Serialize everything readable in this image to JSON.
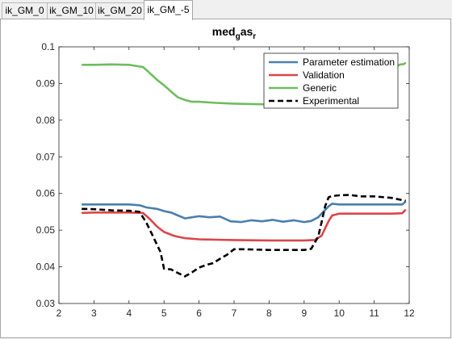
{
  "tabs": [
    {
      "label": "ik_GM_0",
      "active": false
    },
    {
      "label": "ik_GM_10",
      "active": false
    },
    {
      "label": "ik_GM_20",
      "active": false
    },
    {
      "label": "ik_GM_-5",
      "active": true
    }
  ],
  "chart_data": {
    "type": "line",
    "title": {
      "base": "med",
      "sub1": "g",
      "mid": "as",
      "sub2": "r"
    },
    "xlabel": "",
    "ylabel": "",
    "xlim": [
      2,
      12
    ],
    "ylim": [
      0.03,
      0.1
    ],
    "xticks": [
      "2",
      "3",
      "4",
      "5",
      "6",
      "7",
      "8",
      "9",
      "10",
      "11",
      "12"
    ],
    "yticks": [
      "0.03",
      "0.04",
      "0.05",
      "0.06",
      "0.07",
      "0.08",
      "0.09",
      "0.1"
    ],
    "grid": false,
    "legend_position": "top-right",
    "series": [
      {
        "name": "Parameter estimation",
        "color": "#4a7fae",
        "style": "solid",
        "x": [
          2.65,
          3.0,
          3.5,
          4.0,
          4.3,
          4.5,
          4.8,
          5.0,
          5.2,
          5.4,
          5.6,
          5.8,
          6.0,
          6.3,
          6.6,
          6.9,
          7.2,
          7.5,
          7.8,
          8.1,
          8.4,
          8.7,
          9.0,
          9.2,
          9.4,
          9.55,
          9.7,
          9.8,
          10.0,
          10.5,
          11.0,
          11.5,
          11.8,
          11.9
        ],
        "y": [
          0.057,
          0.057,
          0.057,
          0.057,
          0.0568,
          0.0562,
          0.0558,
          0.0552,
          0.0548,
          0.054,
          0.0532,
          0.0535,
          0.0538,
          0.0535,
          0.0537,
          0.0524,
          0.0522,
          0.0527,
          0.0524,
          0.0528,
          0.0523,
          0.0527,
          0.0522,
          0.0525,
          0.0535,
          0.055,
          0.0565,
          0.0572,
          0.057,
          0.057,
          0.057,
          0.057,
          0.057,
          0.0578
        ]
      },
      {
        "name": "Validation",
        "color": "#d9464a",
        "style": "solid",
        "x": [
          2.65,
          3.0,
          3.5,
          4.0,
          4.4,
          4.6,
          4.8,
          5.0,
          5.3,
          5.6,
          6.0,
          6.5,
          7.0,
          8.0,
          9.0,
          9.3,
          9.5,
          9.6,
          9.7,
          9.8,
          10.0,
          10.5,
          11.0,
          11.5,
          11.8,
          11.9
        ],
        "y": [
          0.0547,
          0.0548,
          0.0548,
          0.0548,
          0.0547,
          0.053,
          0.051,
          0.0495,
          0.0484,
          0.0478,
          0.0475,
          0.0474,
          0.0473,
          0.0472,
          0.0472,
          0.0473,
          0.0485,
          0.0505,
          0.0525,
          0.054,
          0.0545,
          0.0545,
          0.0545,
          0.0545,
          0.0546,
          0.0556
        ]
      },
      {
        "name": "Generic",
        "color": "#6dbd5e",
        "style": "solid",
        "x": [
          2.65,
          3.0,
          3.5,
          4.0,
          4.4,
          4.6,
          4.8,
          5.0,
          5.2,
          5.4,
          5.6,
          5.8,
          6.0,
          6.5,
          7.0,
          7.5,
          8.0,
          8.5,
          9.0,
          9.4,
          11.75,
          11.85,
          11.9
        ],
        "y": [
          0.0951,
          0.0951,
          0.0952,
          0.0951,
          0.0945,
          0.0928,
          0.091,
          0.0895,
          0.0878,
          0.0862,
          0.0855,
          0.085,
          0.085,
          0.0847,
          0.0845,
          0.0844,
          0.0843,
          0.0843,
          0.0843,
          0.0843,
          0.0952,
          0.0953,
          0.0957
        ]
      },
      {
        "name": "Experimental",
        "color": "#000000",
        "style": "dashed",
        "x": [
          2.65,
          3.0,
          3.5,
          4.0,
          4.3,
          4.5,
          4.7,
          4.9,
          5.0,
          5.2,
          5.4,
          5.6,
          5.8,
          6.0,
          6.2,
          6.4,
          6.6,
          6.8,
          7.0,
          7.3,
          7.6,
          8.0,
          8.5,
          9.0,
          9.2,
          9.4,
          9.5,
          9.6,
          9.7,
          9.8,
          10.0,
          10.3,
          10.6,
          11.0,
          11.5,
          11.9
        ],
        "y": [
          0.0558,
          0.0557,
          0.0554,
          0.0553,
          0.055,
          0.052,
          0.048,
          0.044,
          0.0395,
          0.0393,
          0.0383,
          0.0374,
          0.0385,
          0.0398,
          0.0405,
          0.041,
          0.0422,
          0.0433,
          0.0448,
          0.0448,
          0.0447,
          0.0446,
          0.0446,
          0.0446,
          0.0449,
          0.0482,
          0.0522,
          0.0565,
          0.059,
          0.0593,
          0.0595,
          0.0596,
          0.0592,
          0.0592,
          0.0588,
          0.058
        ]
      }
    ]
  }
}
